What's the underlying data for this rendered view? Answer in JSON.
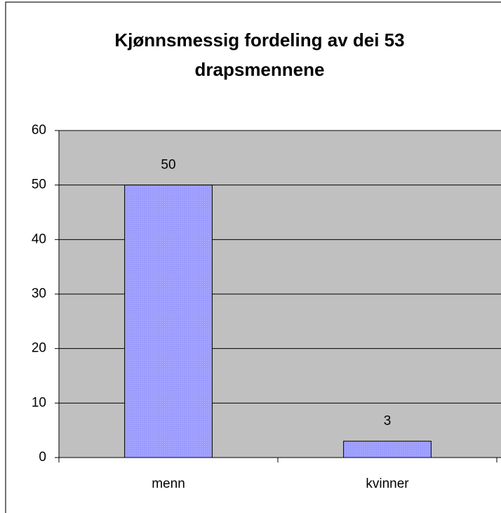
{
  "chart_data": {
    "type": "bar",
    "title": "Kjønnsmessig fordeling av dei 53 drapsmennene",
    "categories": [
      "menn",
      "kvinner"
    ],
    "values": [
      50,
      3
    ],
    "color": "#9999ff",
    "ylim": [
      0,
      60
    ],
    "yticks": [
      0,
      10,
      20,
      30,
      40,
      50,
      60
    ],
    "grid": true,
    "data_labels": true
  }
}
